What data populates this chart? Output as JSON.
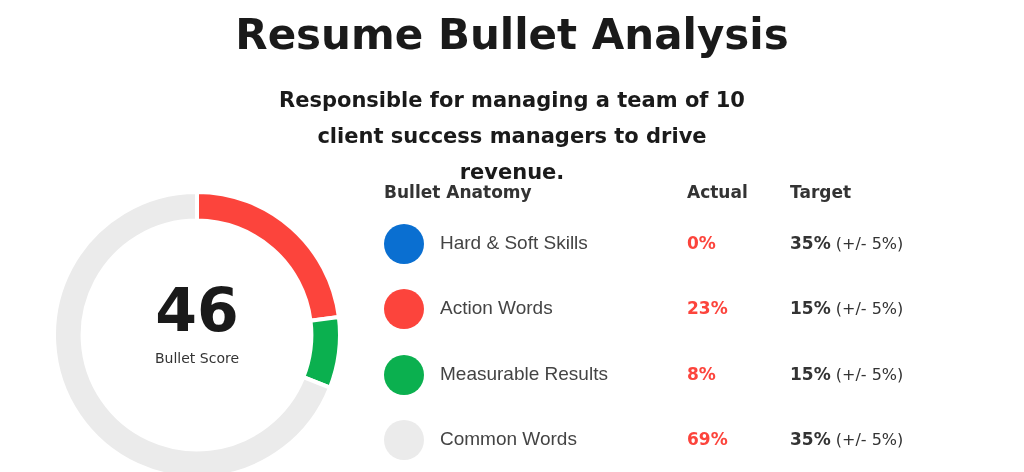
{
  "chart_data": {
    "type": "donut",
    "title": "Resume Bullet Analysis",
    "subtitle": "Responsible for managing a team of 10 client success managers to drive revenue.",
    "categories": [
      "Hard & Soft Skills",
      "Action Words",
      "Measurable Results",
      "Common Words"
    ],
    "values": [
      0,
      23,
      8,
      69
    ],
    "colors": [
      "#0a6fd1",
      "#fc443c",
      "#0bb04f",
      "#ebebeb"
    ],
    "value_labels": [
      "0%",
      "23%",
      "8%",
      "69%"
    ],
    "legend": "right",
    "annotations": [
      "46",
      "Bullet Score",
      "Bullet Anatomy",
      "Actual",
      "Target",
      "35% (+/- 5%)",
      "15% (+/- 5%)",
      "15% (+/- 5%)",
      "35% (+/- 5%)"
    ]
  }
}
